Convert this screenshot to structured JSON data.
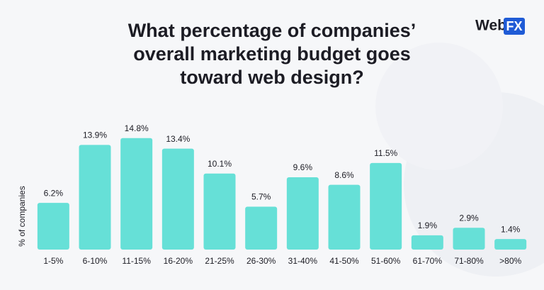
{
  "chart_data": {
    "type": "bar",
    "title": [
      "What percentage of companies’",
      "overall marketing budget goes",
      "toward web design?"
    ],
    "logo": {
      "word": "Web",
      "badge": "FX"
    },
    "y_axis_label": "% of companies",
    "categories": [
      "1-5%",
      "6-10%",
      "11-15%",
      "16-20%",
      "21-25%",
      "26-30%",
      "31-40%",
      "41-50%",
      "51-60%",
      "61-70%",
      "71-80%",
      ">80%"
    ],
    "values": [
      6.2,
      13.9,
      14.8,
      13.4,
      10.1,
      5.7,
      9.6,
      8.6,
      11.5,
      1.9,
      2.9,
      1.4
    ],
    "value_labels": [
      "6.2%",
      "13.9%",
      "14.8%",
      "13.4%",
      "10.1%",
      "5.7%",
      "9.6%",
      "8.6%",
      "11.5%",
      "1.9%",
      "2.9%",
      "1.4%"
    ],
    "color": "#66e0d7",
    "ylim": [
      0,
      16
    ]
  }
}
